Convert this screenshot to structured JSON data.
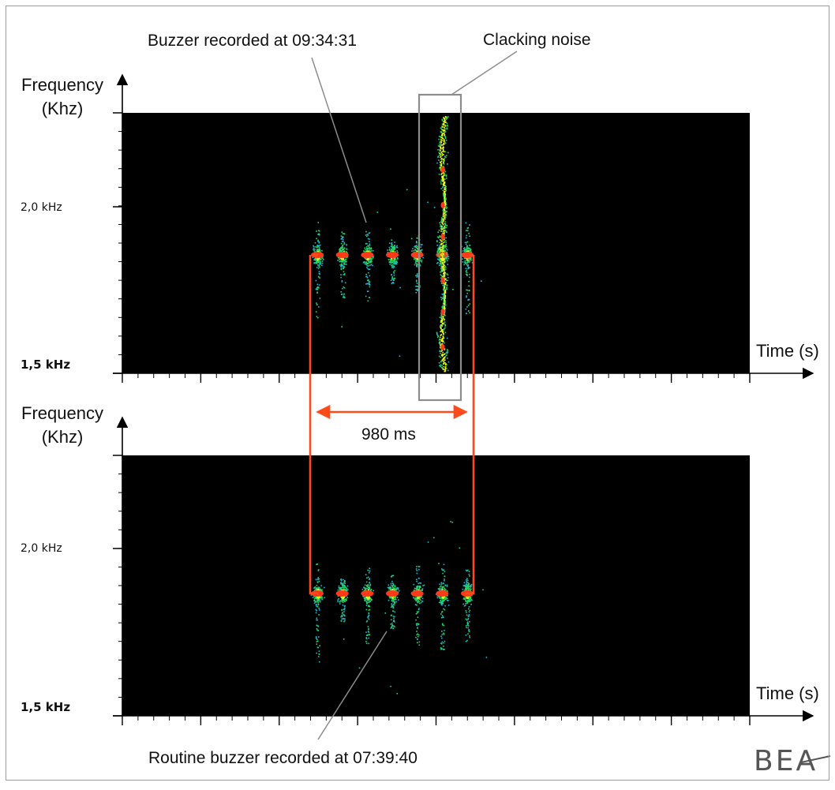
{
  "chart_data": [
    {
      "type": "heatmap",
      "panel": "top",
      "ylabel": "Frequency\n(Khz)",
      "xlabel": "Time (s)",
      "y_tick_labels": {
        "upper": "2,0 kHz",
        "lower": "1,5 kHz"
      },
      "series": [
        {
          "name": "Buzzer recorded at 09:34:31",
          "pulse_count": 7,
          "frequency_khz": 1.8,
          "span_ms": 980
        },
        {
          "name": "Clacking noise",
          "frequency_range_khz": [
            1.5,
            2.3
          ]
        }
      ]
    },
    {
      "type": "heatmap",
      "panel": "bottom",
      "ylabel": "Frequency\n(Khz)",
      "xlabel": "Time (s)",
      "y_tick_labels": {
        "upper": "2,0 kHz",
        "lower": "1,5 kHz"
      },
      "series": [
        {
          "name": "Routine buzzer recorded at 07:39:40",
          "pulse_count": 7,
          "frequency_khz": 1.8,
          "span_ms": 980
        }
      ]
    }
  ],
  "annotations": {
    "top_buzzer": "Buzzer recorded at 09:34:31",
    "clacking": "Clacking noise",
    "duration": "980 ms",
    "bottom_buzzer": "Routine buzzer recorded at 07:39:40"
  },
  "logo_text": "BEA",
  "colors": {
    "spectrogram_bg": "#000000",
    "pulse_core": "#ff3a1a",
    "pulse_mid": "#e8ff1a",
    "pulse_outer": "#1fd96a",
    "pulse_edge": "#1fb8d8",
    "marker": "#ff4a1a",
    "callout_line": "#8c8c8c"
  }
}
